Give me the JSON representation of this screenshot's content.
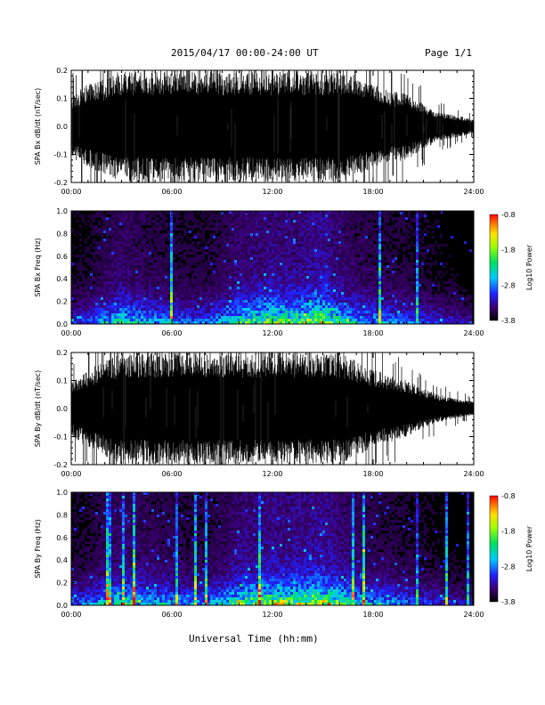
{
  "header": {
    "title": "2015/04/17  00:00-24:00 UT",
    "page": "Page 1/1"
  },
  "x_axis_title": "Universal Time (hh:mm)",
  "chart_data": [
    {
      "type": "line",
      "ylabel": "SPA Bx dB/dt (nT/sec)",
      "xlim": [
        0,
        24
      ],
      "ylim": [
        -0.2,
        0.2
      ],
      "x_ticks": [
        "00:00",
        "06:00",
        "12:00",
        "18:00",
        "24:00"
      ],
      "y_ticks": [
        "-0.2",
        "-0.1",
        "0.0",
        "0.1",
        "0.2"
      ],
      "series_color": "#000000",
      "envelope_hours": [
        0,
        1,
        2,
        3,
        4,
        5,
        6,
        7,
        8,
        9,
        10,
        11,
        12,
        13,
        14,
        15,
        16,
        17,
        18,
        19,
        20,
        21,
        22,
        23,
        24
      ],
      "envelope_amplitude": [
        0.11,
        0.15,
        0.17,
        0.2,
        0.2,
        0.2,
        0.2,
        0.2,
        0.2,
        0.2,
        0.2,
        0.2,
        0.2,
        0.2,
        0.2,
        0.2,
        0.2,
        0.18,
        0.15,
        0.13,
        0.12,
        0.08,
        0.05,
        0.04,
        0.025
      ]
    },
    {
      "type": "heatmap",
      "ylabel": "SPA Bx Freq (Hz)",
      "xlim": [
        0,
        24
      ],
      "ylim": [
        0,
        1.0
      ],
      "x_ticks": [
        "00:00",
        "06:00",
        "12:00",
        "18:00",
        "24:00"
      ],
      "y_ticks": [
        "0.0",
        "0.2",
        "0.4",
        "0.6",
        "0.8",
        "1.0"
      ],
      "colorbar": {
        "label": "Log10 Power",
        "range": [
          -3.8,
          -0.8
        ],
        "ticks": [
          "-0.8",
          "-1.8",
          "-2.8",
          "-3.8"
        ]
      },
      "activity_hours": [
        0,
        1,
        2,
        3,
        4,
        5,
        6,
        7,
        8,
        9,
        10,
        11,
        12,
        13,
        14,
        15,
        16,
        17,
        18,
        19,
        20,
        21,
        22,
        23,
        24
      ],
      "activity_level": [
        0.3,
        0.35,
        0.5,
        0.65,
        0.55,
        0.5,
        0.45,
        0.4,
        0.4,
        0.5,
        0.7,
        0.75,
        0.85,
        0.8,
        0.85,
        0.95,
        0.7,
        0.55,
        0.5,
        0.45,
        0.4,
        0.35,
        0.3,
        0.25,
        0.2
      ]
    },
    {
      "type": "line",
      "ylabel": "SPA By dB/dt (nT/sec)",
      "xlim": [
        0,
        24
      ],
      "ylim": [
        -0.2,
        0.2
      ],
      "x_ticks": [
        "00:00",
        "06:00",
        "12:00",
        "18:00",
        "24:00"
      ],
      "y_ticks": [
        "-0.2",
        "-0.1",
        "0.0",
        "0.1",
        "0.2"
      ],
      "series_color": "#000000",
      "envelope_hours": [
        0,
        1,
        2,
        3,
        4,
        5,
        6,
        7,
        8,
        9,
        10,
        11,
        12,
        13,
        14,
        15,
        16,
        17,
        18,
        19,
        20,
        21,
        22,
        23,
        24
      ],
      "envelope_amplitude": [
        0.1,
        0.14,
        0.17,
        0.2,
        0.2,
        0.2,
        0.2,
        0.2,
        0.2,
        0.2,
        0.2,
        0.2,
        0.2,
        0.2,
        0.2,
        0.2,
        0.2,
        0.17,
        0.14,
        0.12,
        0.1,
        0.07,
        0.05,
        0.035,
        0.025
      ]
    },
    {
      "type": "heatmap",
      "ylabel": "SPA By Freq (Hz)",
      "xlim": [
        0,
        24
      ],
      "ylim": [
        0,
        1.0
      ],
      "x_ticks": [
        "00:00",
        "06:00",
        "12:00",
        "18:00",
        "24:00"
      ],
      "y_ticks": [
        "0.0",
        "0.2",
        "0.4",
        "0.6",
        "0.8",
        "1.0"
      ],
      "colorbar": {
        "label": "Log10 Power",
        "range": [
          -3.8,
          -0.8
        ],
        "ticks": [
          "-0.8",
          "-1.8",
          "-2.8",
          "-3.8"
        ]
      },
      "activity_hours": [
        0,
        1,
        2,
        3,
        4,
        5,
        6,
        7,
        8,
        9,
        10,
        11,
        12,
        13,
        14,
        15,
        16,
        17,
        18,
        19,
        20,
        21,
        22,
        23,
        24
      ],
      "activity_level": [
        0.35,
        0.4,
        0.55,
        0.7,
        0.6,
        0.55,
        0.5,
        0.45,
        0.45,
        0.55,
        0.75,
        0.8,
        0.9,
        0.85,
        0.9,
        0.95,
        0.75,
        0.6,
        0.5,
        0.45,
        0.4,
        0.35,
        0.3,
        0.25,
        0.2
      ]
    }
  ]
}
